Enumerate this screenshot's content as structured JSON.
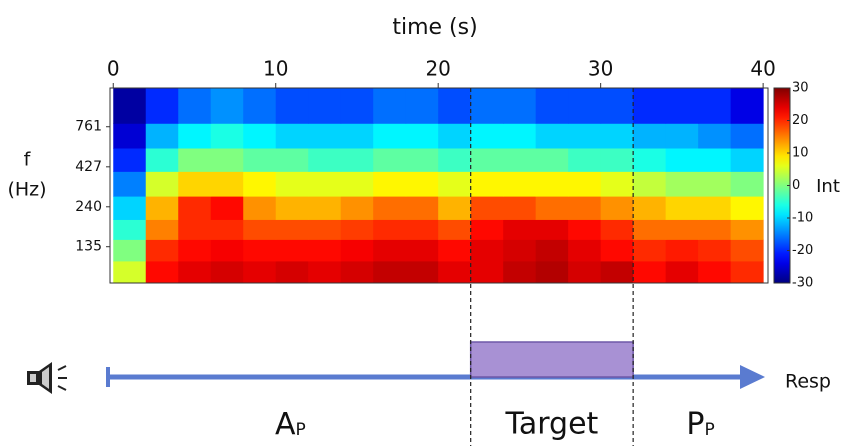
{
  "chart_data": {
    "type": "heatmap",
    "title": "time (s)",
    "ylabel": [
      "f",
      "(Hz)"
    ],
    "xlim": [
      -0.2,
      40.3
    ],
    "xticks": [
      0,
      10,
      20,
      30,
      40
    ],
    "ylim": [
      80,
      1330
    ],
    "ylog": true,
    "yticks": [
      135,
      240,
      427,
      761
    ],
    "x_bins": [
      0,
      2,
      4,
      6,
      8,
      10,
      12,
      14,
      16,
      18,
      20,
      22,
      24,
      26,
      28,
      30,
      32,
      34,
      36,
      38,
      40
    ],
    "y_bins": [
      80,
      110,
      150,
      200,
      280,
      400,
      560,
      800,
      1330
    ],
    "z": [
      [
        5,
        22,
        24,
        25,
        24,
        25,
        24,
        25,
        26,
        26,
        24,
        24,
        26,
        27,
        25,
        26,
        22,
        24,
        22,
        20
      ],
      [
        0,
        20,
        22,
        23,
        22,
        22,
        22,
        23,
        24,
        24,
        22,
        24,
        25,
        26,
        24,
        22,
        20,
        21,
        20,
        18
      ],
      [
        -5,
        15,
        20,
        20,
        18,
        18,
        18,
        19,
        20,
        20,
        18,
        22,
        24,
        24,
        22,
        20,
        16,
        16,
        16,
        14
      ],
      [
        -10,
        12,
        20,
        22,
        14,
        12,
        12,
        14,
        16,
        16,
        12,
        18,
        18,
        16,
        16,
        14,
        12,
        10,
        10,
        8
      ],
      [
        -15,
        5,
        10,
        10,
        8,
        6,
        6,
        6,
        8,
        8,
        6,
        8,
        8,
        8,
        8,
        6,
        4,
        2,
        2,
        0
      ],
      [
        -20,
        -5,
        0,
        0,
        -2,
        -2,
        -4,
        -4,
        -2,
        -2,
        -4,
        -2,
        -2,
        -2,
        -4,
        -4,
        -6,
        -8,
        -8,
        -10
      ],
      [
        -25,
        -12,
        -8,
        -6,
        -8,
        -10,
        -10,
        -10,
        -8,
        -8,
        -10,
        -8,
        -8,
        -10,
        -10,
        -10,
        -12,
        -12,
        -14,
        -16
      ],
      [
        -28,
        -20,
        -16,
        -14,
        -16,
        -18,
        -18,
        -18,
        -16,
        -16,
        -18,
        -16,
        -16,
        -18,
        -18,
        -18,
        -20,
        -20,
        -20,
        -24
      ]
    ],
    "colormap": "jet",
    "clim": [
      -30,
      30
    ],
    "cticks": [
      30,
      20,
      10,
      0,
      -10,
      -20,
      -30
    ],
    "clabel": "Int",
    "target": {
      "label": "Target",
      "start": 22,
      "end": 32
    },
    "phases": [
      {
        "label": "A",
        "sub": "P"
      },
      {
        "label": "P",
        "sub": "P"
      }
    ],
    "end_label": "Resp"
  }
}
